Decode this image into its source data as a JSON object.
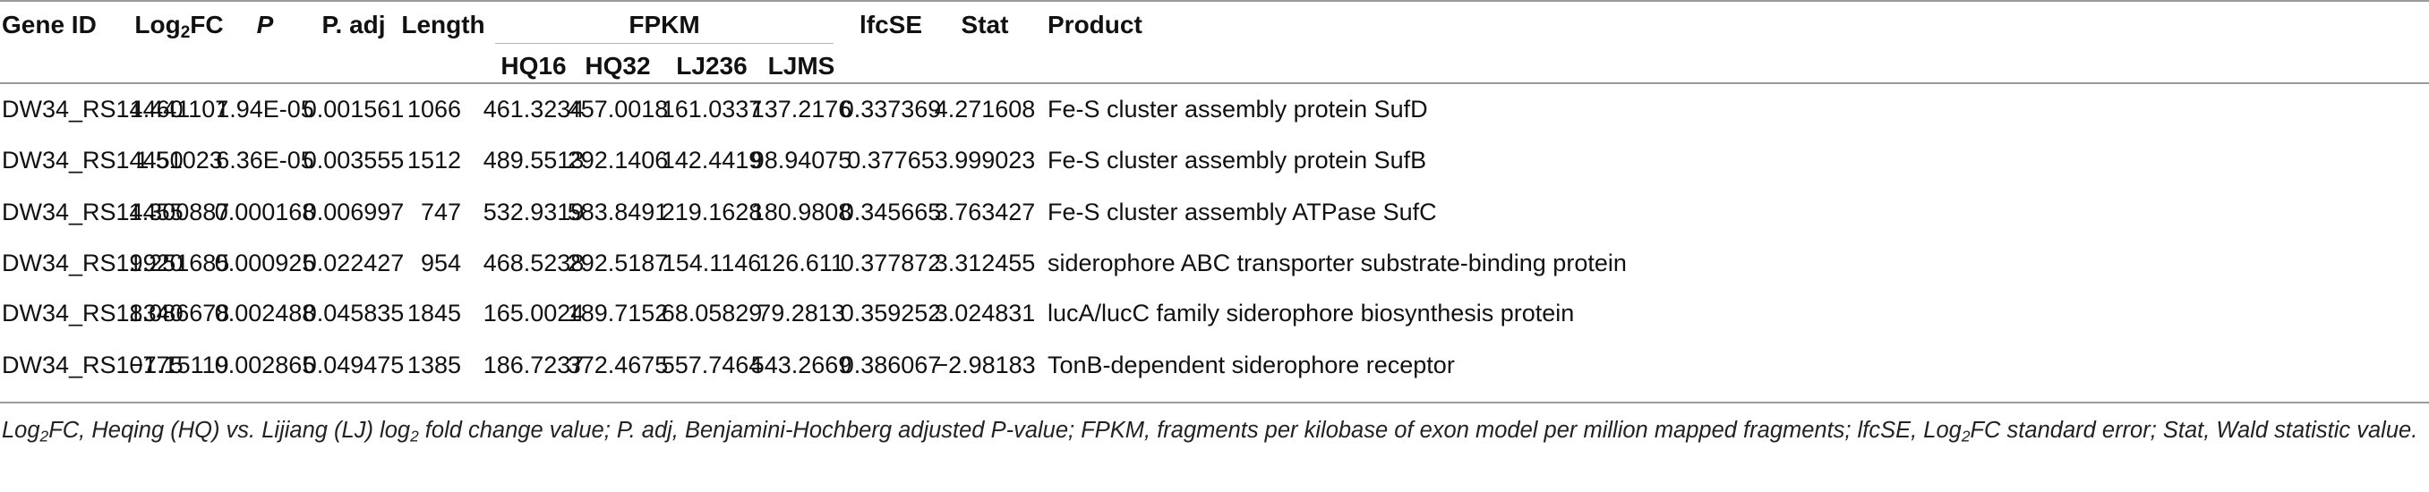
{
  "table": {
    "headers": {
      "gene_id": "Gene ID",
      "log2fc": {
        "prefix": "Log",
        "sub": "2",
        "suffix": "FC"
      },
      "p": "P",
      "p_adj": "P. adj",
      "length": "Length",
      "fpkm": "FPKM",
      "lfcse": "lfcSE",
      "stat": "Stat",
      "product": "Product",
      "fpkm_sub": [
        "HQ16",
        "HQ32",
        "LJ236",
        "LJMS"
      ]
    },
    "rows": [
      [
        "DW34_RS14460",
        "1.441107",
        "1.94E-05",
        "0.001561",
        "1066",
        "461.3234",
        "457.0018",
        "161.0337",
        "137.2176",
        "0.337369",
        "4.271608",
        "Fe-S cluster assembly protein SufD"
      ],
      [
        "DW34_RS14450",
        "1.51023",
        "6.36E-05",
        "0.003555",
        "1512",
        "489.5513",
        "292.1406",
        "142.4419",
        "98.94075",
        "0.37765",
        "3.999023",
        "Fe-S cluster assembly protein SufB"
      ],
      [
        "DW34_RS14455",
        "1.300887",
        "0.000168",
        "0.006997",
        "747",
        "532.9319",
        "583.8491",
        "219.1628",
        "180.9808",
        "0.345665",
        "3.763427",
        "Fe-S cluster assembly ATPase SufC"
      ],
      [
        "DW34_RS19920",
        "1.251685",
        "0.000925",
        "0.022427",
        "954",
        "468.5238",
        "292.5187",
        "154.1146",
        "126.611",
        "0.377872",
        "3.312455",
        "siderophore ABC transporter substrate-binding protein"
      ],
      [
        "DW34_RS18340",
        "1.086678",
        "0.002488",
        "0.045835",
        "1845",
        "165.0024",
        "189.7152",
        "68.05829",
        "79.2813",
        "0.359252",
        "3.024831",
        "lucA/lucC family siderophore biosynthesis protein"
      ],
      [
        "DW34_RS10775",
        "−1.15119",
        "0.002865",
        "0.049475",
        "1385",
        "186.7237",
        "372.4675",
        "557.7464",
        "543.2669",
        "0.386067",
        "−2.98183",
        "TonB-dependent siderophore receptor"
      ]
    ]
  },
  "footnote": {
    "part1": "Log",
    "sub1": "2",
    "part2": "FC, Heqing (HQ) vs. Lijiang (LJ) log",
    "sub2": "2",
    "part3": " fold change value; P. adj, Benjamini-Hochberg adjusted P-value; FPKM, fragments per kilobase of exon model per million mapped fragments; lfcSE, Log",
    "sub3": "2",
    "part4": "FC standard error; Stat, Wald statistic value."
  }
}
